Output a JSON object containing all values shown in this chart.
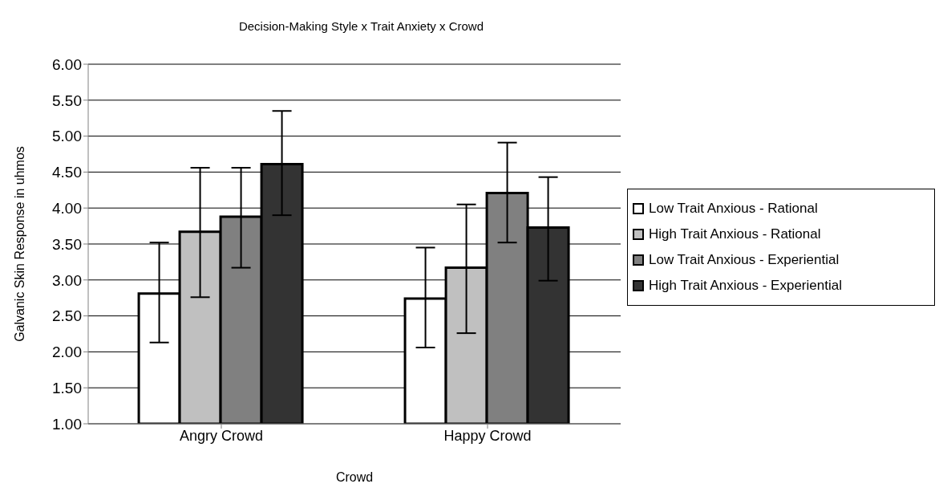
{
  "chart_data": {
    "type": "bar",
    "title": "Decision-Making Style x Trait Anxiety x Crowd",
    "xlabel": "Crowd",
    "ylabel": "Galvanic Skin Response in uhmos",
    "categories": [
      "Angry Crowd",
      "Happy Crowd"
    ],
    "series": [
      {
        "name": "Low Trait Anxious - Rational",
        "color": "#ffffff",
        "values": [
          2.81,
          2.74
        ],
        "errors": [
          [
            2.13,
            3.52
          ],
          [
            2.06,
            3.45
          ]
        ]
      },
      {
        "name": "High Trait Anxious - Rational",
        "color": "#c0c0c0",
        "values": [
          3.67,
          3.17
        ],
        "errors": [
          [
            2.76,
            4.56
          ],
          [
            2.26,
            4.05
          ]
        ]
      },
      {
        "name": "Low Trait Anxious - Experiential",
        "color": "#808080",
        "values": [
          3.88,
          4.21
        ],
        "errors": [
          [
            3.17,
            4.56
          ],
          [
            3.52,
            4.91
          ]
        ]
      },
      {
        "name": "High Trait Anxious - Experiential",
        "color": "#333333",
        "values": [
          4.61,
          3.73
        ],
        "errors": [
          [
            3.9,
            5.35
          ],
          [
            2.99,
            4.43
          ]
        ]
      }
    ],
    "ylim": [
      1,
      6
    ],
    "yticks": [
      {
        "value": 1,
        "label": "1.00"
      },
      {
        "value": 1.5,
        "label": "1.50"
      },
      {
        "value": 2,
        "label": "2.00"
      },
      {
        "value": 2.5,
        "label": "2.50"
      },
      {
        "value": 3,
        "label": "3.00"
      },
      {
        "value": 3.5,
        "label": "3.50"
      },
      {
        "value": 4,
        "label": "4.00"
      },
      {
        "value": 4.5,
        "label": "4.50"
      },
      {
        "value": 5,
        "label": "5.00"
      },
      {
        "value": 5.5,
        "label": "5.50"
      },
      {
        "value": 6,
        "label": "6.00"
      }
    ],
    "grid": "y",
    "legend": "right"
  }
}
